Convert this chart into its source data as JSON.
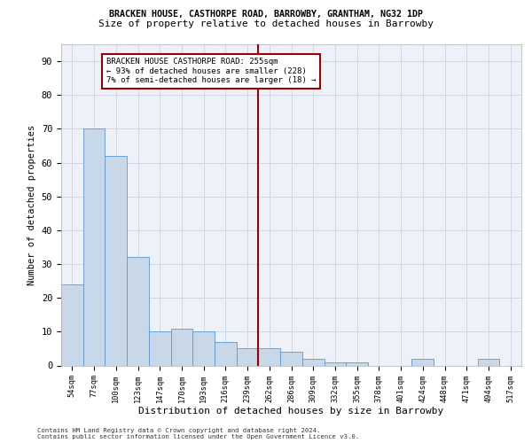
{
  "title1": "BRACKEN HOUSE, CASTHORPE ROAD, BARROWBY, GRANTHAM, NG32 1DP",
  "title2": "Size of property relative to detached houses in Barrowby",
  "xlabel": "Distribution of detached houses by size in Barrowby",
  "ylabel": "Number of detached properties",
  "footer1": "Contains HM Land Registry data © Crown copyright and database right 2024.",
  "footer2": "Contains public sector information licensed under the Open Government Licence v3.0.",
  "categories": [
    "54sqm",
    "77sqm",
    "100sqm",
    "123sqm",
    "147sqm",
    "170sqm",
    "193sqm",
    "216sqm",
    "239sqm",
    "262sqm",
    "286sqm",
    "309sqm",
    "332sqm",
    "355sqm",
    "378sqm",
    "401sqm",
    "424sqm",
    "448sqm",
    "471sqm",
    "494sqm",
    "517sqm"
  ],
  "values": [
    24,
    70,
    62,
    32,
    10,
    11,
    10,
    7,
    5,
    5,
    4,
    2,
    1,
    1,
    0,
    0,
    2,
    0,
    0,
    2,
    0
  ],
  "bar_color": "#c8d8e8",
  "bar_edge_color": "#5b9bd5",
  "reference_line_x": 8.5,
  "reference_line_label": "BRACKEN HOUSE CASTHORPE ROAD: 255sqm",
  "annotation_line1": "← 93% of detached houses are smaller (228)",
  "annotation_line2": "7% of semi-detached houses are larger (18) →",
  "ylim": [
    0,
    95
  ],
  "grid_color": "#d0d8e8",
  "bg_color": "#eef2f8"
}
